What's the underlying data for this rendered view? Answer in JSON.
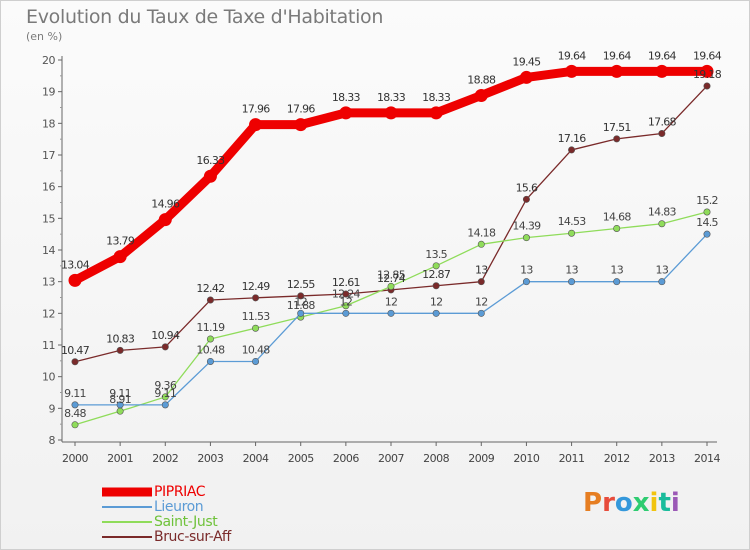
{
  "header": {
    "title": "Evolution du Taux de Taxe d'Habitation",
    "unit": "(en %)"
  },
  "logo": {
    "text": "Proxiti",
    "colors": [
      "#e67e22",
      "#e74c3c",
      "#3498db",
      "#2ecc71",
      "#f1c40f",
      "#1abc9c",
      "#9b59b6"
    ]
  },
  "chart_data": {
    "type": "line",
    "title": "Evolution du Taux de Taxe d'Habitation",
    "ylabel": "(en %)",
    "xlabel": "",
    "x": [
      2000,
      2001,
      2002,
      2003,
      2004,
      2005,
      2006,
      2007,
      2008,
      2009,
      2010,
      2011,
      2012,
      2013,
      2014
    ],
    "ylim": [
      8,
      20
    ],
    "yticks": [
      8,
      9,
      10,
      11,
      12,
      13,
      14,
      15,
      16,
      17,
      18,
      19,
      20
    ],
    "grid": false,
    "legend": "bottom-left",
    "series": [
      {
        "name": "PIPRIAC",
        "color": "#ee0000",
        "label_color": "#333333",
        "values": [
          13.04,
          13.79,
          14.96,
          16.33,
          17.96,
          17.96,
          18.33,
          18.33,
          18.33,
          18.88,
          19.45,
          19.64,
          19.64,
          19.64,
          19.64
        ],
        "labels": [
          "13.04",
          "13.79",
          "14.96",
          "16.33",
          "17.96",
          "17.96",
          "18.33",
          "18.33",
          "18.33",
          "18.88",
          "19.45",
          "19.64",
          "19.64",
          "19.64",
          "19.64"
        ]
      },
      {
        "name": "Lieuron",
        "color": "#5b9bd5",
        "label_color": "#444444",
        "values": [
          9.11,
          9.11,
          9.11,
          10.48,
          10.48,
          12,
          12,
          12,
          12,
          12,
          13,
          13,
          13,
          13,
          14.5
        ],
        "labels": [
          "9.11",
          "9.11",
          "9.11",
          "10.48",
          "10.48",
          "12",
          "12",
          "12",
          "12",
          "12",
          "13",
          "13",
          "13",
          "13",
          "14.5"
        ]
      },
      {
        "name": "Saint-Just",
        "color": "#8fdc5a",
        "label_color": "#444444",
        "values": [
          8.48,
          8.91,
          9.36,
          11.19,
          11.53,
          11.88,
          12.24,
          12.85,
          13.5,
          14.18,
          14.39,
          14.53,
          14.68,
          14.83,
          15.2
        ],
        "labels": [
          "8.48",
          "8.91",
          "9.36",
          "11.19",
          "11.53",
          "11.88",
          "12.24",
          "12.85",
          "13.5",
          "14.18",
          "14.39",
          "14.53",
          "14.68",
          "14.83",
          "15.2"
        ]
      },
      {
        "name": "Bruc-sur-Aff",
        "color": "#7a2a2a",
        "label_color": "#333333",
        "values": [
          10.47,
          10.83,
          10.94,
          12.42,
          12.49,
          12.55,
          12.61,
          12.74,
          12.87,
          13,
          15.6,
          17.16,
          17.51,
          17.68,
          19.18
        ],
        "labels": [
          "10.47",
          "10.83",
          "10.94",
          "12.42",
          "12.49",
          "12.55",
          "12.61",
          "12.74",
          "12.87",
          "13",
          "15.6",
          "17.16",
          "17.51",
          "17.68",
          "19.18"
        ]
      }
    ]
  }
}
